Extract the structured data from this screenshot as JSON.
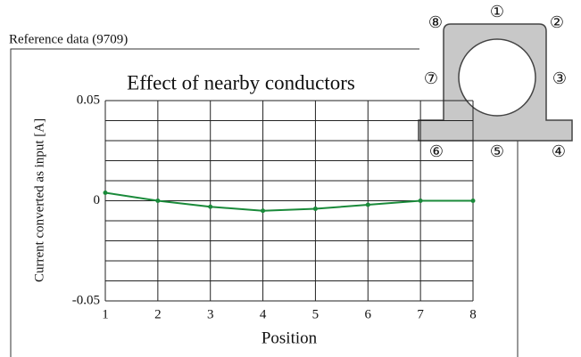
{
  "reference": "Reference data (9709)",
  "chart_data": {
    "type": "line",
    "title": "Effect of nearby conductors",
    "x_label": "Position",
    "y_label": "Current converted as input [A]",
    "x": [
      1,
      2,
      3,
      4,
      5,
      6,
      7,
      8
    ],
    "values": [
      0.004,
      0,
      -0.003,
      -0.005,
      -0.004,
      -0.002,
      0,
      0
    ],
    "color": "#1a8a3a",
    "xlim": [
      1,
      8
    ],
    "xticks": [
      1,
      2,
      3,
      4,
      5,
      6,
      7,
      8
    ],
    "ylim": [
      -0.05,
      0.05
    ],
    "yticks": [
      0.05,
      0,
      -0.05
    ],
    "grid": true,
    "grid_yticks": [
      -0.05,
      -0.04,
      -0.03,
      -0.02,
      -0.01,
      0,
      0.01,
      0.02,
      0.03,
      0.04,
      0.05
    ]
  },
  "diagram": {
    "position_labels": [
      "①",
      "②",
      "③",
      "④",
      "⑤",
      "⑥",
      "⑦",
      "⑧"
    ]
  }
}
